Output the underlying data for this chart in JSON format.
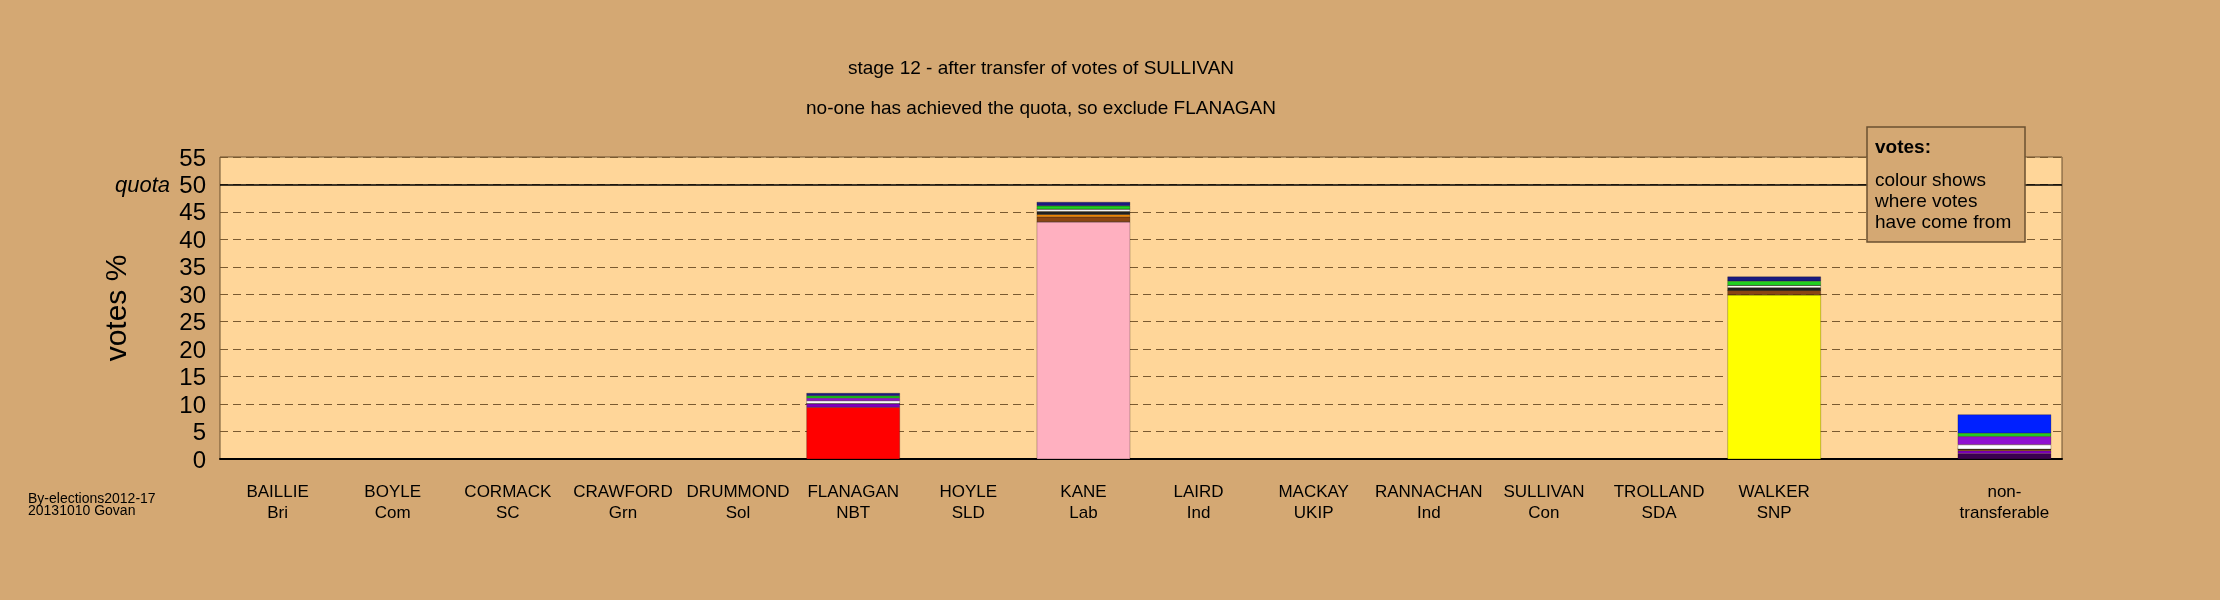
{
  "chart_data": {
    "type": "bar",
    "stacked": true,
    "title": "stage 12 - after transfer of votes of SULLIVAN",
    "subtitle": "no-one has achieved the quota, so exclude FLANAGAN",
    "ylabel": "votes %",
    "categories": [
      "BAILLIE\nBri",
      "BOYLE\nCom",
      "CORMACK\nSC",
      "CRAWFORD\nGrn",
      "DRUMMOND\nSol",
      "FLANAGAN\nNBT",
      "HOYLE\nSLD",
      "KANE\nLab",
      "LAIRD\nInd",
      "MACKAY\nUKIP",
      "RANNACHAN\nInd",
      "SULLIVAN\nCon",
      "TROLLAND\nSDA",
      "WALKER\nSNP",
      null,
      "non-\ntransferable"
    ],
    "series": [
      {
        "colors": [
          "#000000",
          "#000000",
          "#000000",
          "#000000",
          "#000000",
          "#ff0000",
          "#000000",
          "#ffb0c0",
          "#000000",
          "#000000",
          "#000000",
          "#000000",
          "#000000",
          "#ffff00",
          "#000000",
          "#3a0050"
        ],
        "values": [
          0,
          0,
          0,
          0,
          0,
          9.4,
          0,
          43.2,
          0,
          0,
          0,
          0,
          0,
          29.9,
          null,
          1.0
        ]
      },
      {
        "color": "#8000c0",
        "values": [
          0,
          0,
          0,
          0,
          0,
          0.7,
          0,
          0,
          0,
          0,
          0,
          0,
          0,
          0,
          null,
          0.5
        ]
      },
      {
        "color": "#8b4513",
        "values": [
          0,
          0,
          0,
          0,
          0,
          0,
          0,
          0.9,
          0,
          0,
          0,
          0,
          0,
          0.8,
          null,
          0.3
        ]
      },
      {
        "color": "#ff8c00",
        "values": [
          0,
          0,
          0,
          0,
          0,
          0,
          0,
          0.4,
          0,
          0,
          0,
          0,
          0,
          0,
          null,
          0
        ]
      },
      {
        "color": "#202020",
        "values": [
          0,
          0,
          0,
          0,
          0,
          0,
          0,
          0.6,
          0,
          0,
          0,
          0,
          0,
          0.5,
          null,
          0
        ]
      },
      {
        "color": "#ffffff",
        "values": [
          0,
          0,
          0,
          0,
          0,
          0.5,
          0,
          0.4,
          0,
          0,
          0,
          0,
          0,
          0.4,
          null,
          0.8
        ]
      },
      {
        "color": "#9010d0",
        "values": [
          0,
          0,
          0,
          0,
          0,
          0.5,
          0,
          0,
          0,
          0,
          0,
          0,
          0,
          0,
          null,
          1.5
        ]
      },
      {
        "color": "#20d020",
        "values": [
          0,
          0,
          0,
          0,
          0,
          0.4,
          0,
          0.6,
          0,
          0,
          0,
          0,
          0,
          0.8,
          null,
          0.6
        ]
      },
      {
        "colors": [
          "#1a1a80",
          "#1a1a80",
          "#1a1a80",
          "#1a1a80",
          "#1a1a80",
          "#1a1a80",
          "#1a1a80",
          "#1a1a80",
          "#1a1a80",
          "#1a1a80",
          "#1a1a80",
          "#1a1a80",
          "#1a1a80",
          "#1a1a80",
          "#1a1a80",
          "#0020ff"
        ],
        "values": [
          0,
          0,
          0,
          0,
          0,
          0.5,
          0,
          0.7,
          0,
          0,
          0,
          0,
          0,
          0.8,
          null,
          3.4
        ]
      }
    ],
    "ylim": [
      0,
      55
    ],
    "yticks": [
      0,
      5,
      10,
      15,
      20,
      25,
      30,
      35,
      40,
      45,
      50,
      55
    ],
    "grid": "y",
    "ref_lines": [
      {
        "axis": "y",
        "value": 50,
        "label": "quota",
        "color": "#000000",
        "line_style": "solid"
      }
    ],
    "annotations": [
      "votes:",
      "colour shows\nwhere votes\nhave come from",
      "By-elections2012-17",
      "20131010 Govan"
    ]
  }
}
